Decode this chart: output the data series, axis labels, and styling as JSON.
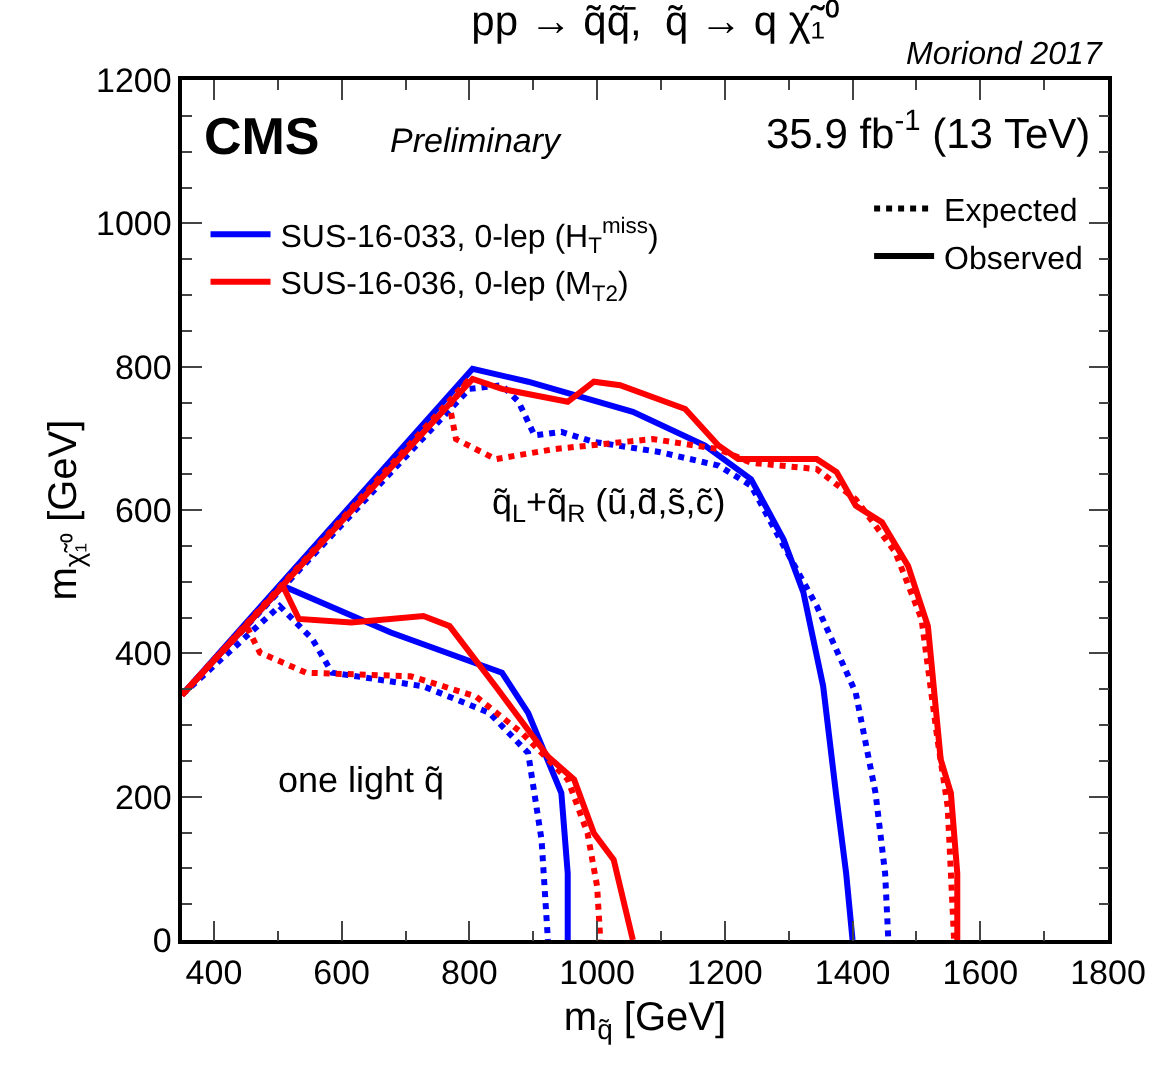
{
  "chart_data": {
    "type": "line",
    "title": "pp → q̃q̃̄,  q̃ → q χ̃₁⁰",
    "xlabel": "m$_{q̃}$ [GeV]",
    "ylabel": "m$_{χ̃₁⁰}$ [GeV]",
    "xlim": [
      350,
      1800
    ],
    "xticks": [
      400,
      600,
      800,
      1000,
      1200,
      1400,
      1600,
      1800
    ],
    "ylim": [
      0,
      1200
    ],
    "yticks": [
      0,
      200,
      400,
      600,
      800,
      1000,
      1200
    ],
    "grid": false,
    "legend": "top left",
    "marker": "none",
    "annotations": [
      "Moriond 2017",
      "CMS",
      "Preliminary",
      "35.9 fb$^{-1}$ (13 TeV)",
      "q̃$_{L}$+q̃$_{R}$ (ũ,d̃,s̃,c̃)",
      "one light q̃"
    ],
    "series": [
      {
        "name": "SUS-16-033, 0-lep (H$_{T}$$^{miss}$)",
        "color": "#0000ff",
        "line_style": "solid",
        "x": [
          350,
          805,
          892,
          1056,
          1169,
          1241,
          1292,
          1323,
          1354,
          1374,
          1390,
          1400
        ],
        "values": [
          342,
          797,
          779,
          737,
          690,
          643,
          559,
          485,
          354,
          205,
          93,
          0
        ]
      },
      {
        "color": "#0000ff",
        "line_style": "dotted",
        "x": [
          350,
          800,
          851,
          877,
          902,
          944,
          995,
          1097,
          1190,
          1241,
          1292,
          1344,
          1405,
          1436,
          1451,
          1456
        ],
        "values": [
          342,
          769,
          774,
          751,
          704,
          709,
          695,
          681,
          662,
          634,
          550,
          466,
          345,
          205,
          93,
          0
        ]
      },
      {
        "color": "#0000ff",
        "line_style": "solid",
        "x": [
          350,
          508,
          677,
          851,
          892,
          944,
          954,
          954
        ],
        "values": [
          342,
          494,
          429,
          373,
          317,
          205,
          93,
          0
        ]
      },
      {
        "color": "#0000ff",
        "line_style": "dotted",
        "x": [
          350,
          503,
          554,
          585,
          728,
          831,
          892,
          913,
          923
        ],
        "values": [
          342,
          466,
          420,
          373,
          354,
          317,
          261,
          140,
          0
        ]
      },
      {
        "name": "SUS-16-036, 0-lep (M$_{T2}$)",
        "color": "#ff0000",
        "line_style": "solid",
        "x": [
          350,
          805,
          851,
          954,
          995,
          1036,
          1138,
          1190,
          1221,
          1344,
          1375,
          1405,
          1446,
          1487,
          1518,
          1538,
          1554,
          1564,
          1564
        ],
        "values": [
          342,
          783,
          769,
          751,
          779,
          774,
          741,
          690,
          671,
          671,
          653,
          606,
          583,
          522,
          438,
          252,
          205,
          93,
          0
        ]
      },
      {
        "color": "#ff0000",
        "line_style": "dotted",
        "x": [
          350,
          800,
          769,
          779,
          841,
          933,
          1087,
          1190,
          1241,
          1344,
          1405,
          1467,
          1508,
          1533,
          1549,
          1559
        ],
        "values": [
          342,
          783,
          746,
          699,
          671,
          685,
          699,
          685,
          666,
          657,
          615,
          541,
          448,
          280,
          186,
          0
        ]
      },
      {
        "color": "#ff0000",
        "line_style": "solid",
        "x": [
          350,
          508,
          533,
          615,
          728,
          769,
          841,
          923,
          964,
          995,
          1026,
          1056
        ],
        "values": [
          342,
          494,
          448,
          443,
          452,
          438,
          354,
          256,
          224,
          149,
          112,
          0
        ]
      },
      {
        "color": "#ff0000",
        "line_style": "dotted",
        "x": [
          350,
          451,
          472,
          544,
          708,
          810,
          882,
          954,
          985,
          1000,
          1005
        ],
        "values": [
          342,
          438,
          401,
          373,
          368,
          340,
          289,
          224,
          149,
          75,
          0
        ]
      },
      {
        "name": "Expected",
        "color": "#000000",
        "line_style": "dotted"
      },
      {
        "name": "Observed",
        "color": "#000000",
        "line_style": "solid"
      }
    ]
  }
}
